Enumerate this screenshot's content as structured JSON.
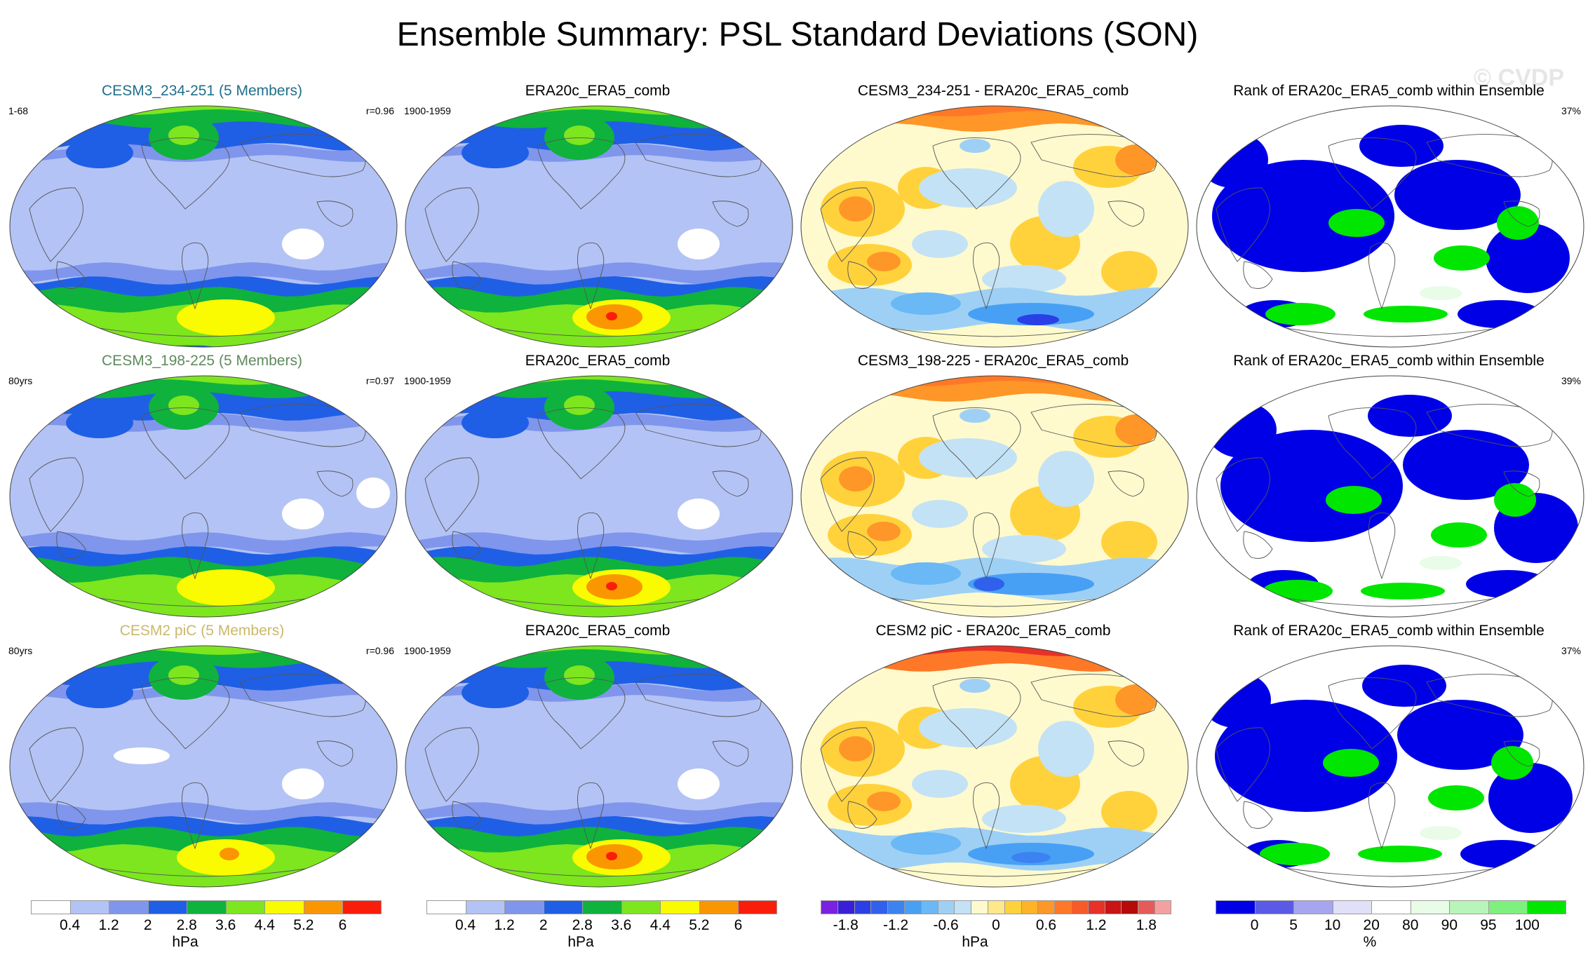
{
  "title": "Ensemble Summary: PSL Standard Deviations (SON)",
  "watermark": "© CVDP",
  "chart_data": {
    "type": "heatmap",
    "description_rows": 3,
    "panels": [
      [
        {
          "kind": "model",
          "title": "CESM3_234-251 (5 Members)",
          "title_color": "#1f6f8b",
          "left": "1-68",
          "right": "r=0.96",
          "variant": 0
        },
        {
          "kind": "obs",
          "title": "ERA20c_ERA5_comb",
          "title_color": "#000000",
          "left": "1900-1959",
          "right": "",
          "variant": 1
        },
        {
          "kind": "diff",
          "title": "CESM3_234-251 - ERA20c_ERA5_comb",
          "title_color": "#000000",
          "left": "",
          "right": "",
          "variant": 0
        },
        {
          "kind": "rank",
          "title": "Rank of ERA20c_ERA5_comb within Ensemble",
          "title_color": "#000000",
          "left": "",
          "right": "37%",
          "variant": 0
        }
      ],
      [
        {
          "kind": "model",
          "title": "CESM3_198-225 (5 Members)",
          "title_color": "#5e8a5e",
          "left": "80yrs",
          "right": "r=0.97",
          "variant": 2
        },
        {
          "kind": "obs",
          "title": "ERA20c_ERA5_comb",
          "title_color": "#000000",
          "left": "1900-1959",
          "right": "",
          "variant": 1
        },
        {
          "kind": "diff",
          "title": "CESM3_198-225 - ERA20c_ERA5_comb",
          "title_color": "#000000",
          "left": "",
          "right": "",
          "variant": 1
        },
        {
          "kind": "rank",
          "title": "Rank of ERA20c_ERA5_comb within Ensemble",
          "title_color": "#000000",
          "left": "",
          "right": "39%",
          "variant": 1
        }
      ],
      [
        {
          "kind": "model",
          "title": "CESM2 piC (5 Members)",
          "title_color": "#c9b96a",
          "left": "80yrs",
          "right": "r=0.96",
          "variant": 3
        },
        {
          "kind": "obs",
          "title": "ERA20c_ERA5_comb",
          "title_color": "#000000",
          "left": "1900-1959",
          "right": "",
          "variant": 1
        },
        {
          "kind": "diff",
          "title": "CESM2 piC - ERA20c_ERA5_comb",
          "title_color": "#000000",
          "left": "",
          "right": "",
          "variant": 2
        },
        {
          "kind": "rank",
          "title": "Rank of ERA20c_ERA5_comb within Ensemble",
          "title_color": "#000000",
          "left": "",
          "right": "37%",
          "variant": 2
        }
      ]
    ],
    "colorbars": [
      {
        "name": "std-colorbar",
        "colors": [
          "#ffffff",
          "#b4c3f5",
          "#7f96ec",
          "#1f5fe6",
          "#0fb23c",
          "#7de61e",
          "#fafa00",
          "#fa9600",
          "#fa1e0a"
        ],
        "ticks": [
          "0.4",
          "1.2",
          "2",
          "2.8",
          "3.6",
          "4.4",
          "5.2",
          "6"
        ],
        "unit": "hPa"
      },
      {
        "name": "std-colorbar",
        "colors": [
          "#ffffff",
          "#b4c3f5",
          "#7f96ec",
          "#1f5fe6",
          "#0fb23c",
          "#7de61e",
          "#fafa00",
          "#fa9600",
          "#fa1e0a"
        ],
        "ticks": [
          "0.4",
          "1.2",
          "2",
          "2.8",
          "3.6",
          "4.4",
          "5.2",
          "6"
        ],
        "unit": "hPa"
      },
      {
        "name": "diff-colorbar",
        "colors": [
          "#7a22e0",
          "#3a1fd8",
          "#2b3fe6",
          "#3060ec",
          "#3c82f0",
          "#48a0f5",
          "#6ab8f5",
          "#9ed0f5",
          "#c4e2f5",
          "#fffacd",
          "#ffe88a",
          "#ffd23c",
          "#ffb428",
          "#ff9628",
          "#ff7828",
          "#f55a28",
          "#e63228",
          "#c81414",
          "#b40a0a",
          "#e65a5a",
          "#f5a0a0"
        ],
        "ticks": [
          "-1.8",
          "-1.2",
          "-0.6",
          "0",
          "0.6",
          "1.2",
          "1.8"
        ],
        "unit": "hPa"
      },
      {
        "name": "rank-colorbar",
        "colors": [
          "#0000e6",
          "#5a5ae6",
          "#a5a5f0",
          "#e0e0f8",
          "#ffffff",
          "#e8fce8",
          "#b8f5b8",
          "#7ef07e",
          "#00e600"
        ],
        "ticks": [
          "0",
          "5",
          "10",
          "20",
          "80",
          "90",
          "95",
          "100"
        ],
        "unit": "%"
      }
    ]
  }
}
